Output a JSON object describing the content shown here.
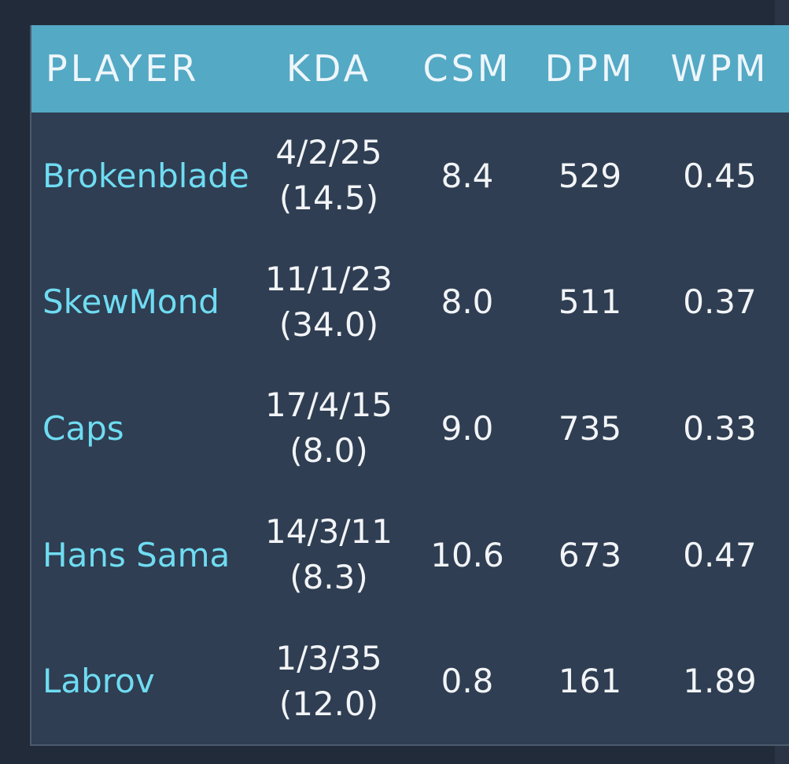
{
  "headers": {
    "player": "PLAYER",
    "kda": "KDA",
    "csm": "CSM",
    "dpm": "DPM",
    "wpm": "WPM"
  },
  "rows": [
    {
      "player": "Brokenblade",
      "kda": "4/2/25",
      "kda_ratio": "(14.5)",
      "csm": "8.4",
      "dpm": "529",
      "wpm": "0.45"
    },
    {
      "player": "SkewMond",
      "kda": "11/1/23",
      "kda_ratio": "(34.0)",
      "csm": "8.0",
      "dpm": "511",
      "wpm": "0.37"
    },
    {
      "player": "Caps",
      "kda": "17/4/15",
      "kda_ratio": "(8.0)",
      "csm": "9.0",
      "dpm": "735",
      "wpm": "0.33"
    },
    {
      "player": "Hans Sama",
      "kda": "14/3/11",
      "kda_ratio": "(8.3)",
      "csm": "10.6",
      "dpm": "673",
      "wpm": "0.47"
    },
    {
      "player": "Labrov",
      "kda": "1/3/35",
      "kda_ratio": "(12.0)",
      "csm": "0.8",
      "dpm": "161",
      "wpm": "1.89"
    }
  ],
  "colors": {
    "header_bg": "#54a9c5",
    "body_bg": "#2f3e52",
    "player_name": "#6fdcf2",
    "page_bg": "#222b39"
  }
}
